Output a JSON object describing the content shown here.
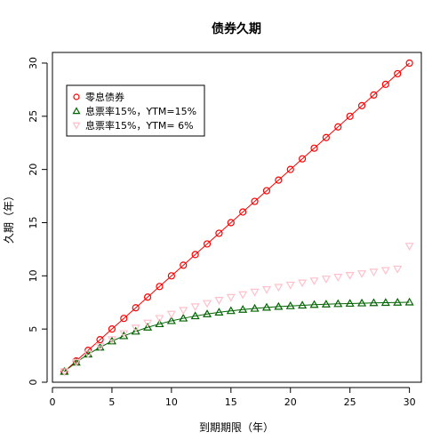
{
  "chart_data": {
    "type": "line",
    "title": "债券久期",
    "xlabel": "到期期限（年）",
    "ylabel": "久期（年）",
    "xlim": [
      0,
      31
    ],
    "ylim": [
      0,
      31
    ],
    "x_ticks": [
      0,
      5,
      10,
      15,
      20,
      25,
      30
    ],
    "y_ticks": [
      0,
      5,
      10,
      15,
      20,
      25,
      30
    ],
    "grid": false,
    "legend_position": "top-left",
    "x": [
      1,
      2,
      3,
      4,
      5,
      6,
      7,
      8,
      9,
      10,
      11,
      12,
      13,
      14,
      15,
      16,
      17,
      18,
      19,
      20,
      21,
      22,
      23,
      24,
      25,
      26,
      27,
      28,
      29,
      30
    ],
    "series": [
      {
        "name": "零息债券",
        "color": "#ff0000",
        "marker": "circle",
        "line": true,
        "values": [
          1,
          2,
          3,
          4,
          5,
          6,
          7,
          8,
          9,
          10,
          11,
          12,
          13,
          14,
          15,
          16,
          17,
          18,
          19,
          20,
          21,
          22,
          23,
          24,
          25,
          26,
          27,
          28,
          29,
          30
        ]
      },
      {
        "name": "息票率15%，YTM=15%",
        "color": "#006400",
        "marker": "triangle-up",
        "line": true,
        "values": [
          1.0,
          1.87,
          2.63,
          3.28,
          3.86,
          4.35,
          4.78,
          5.16,
          5.48,
          5.77,
          6.01,
          6.22,
          6.41,
          6.57,
          6.71,
          6.83,
          6.93,
          7.03,
          7.11,
          7.17,
          7.23,
          7.29,
          7.33,
          7.37,
          7.4,
          7.43,
          7.46,
          7.48,
          7.5,
          7.52
        ]
      },
      {
        "name": "息票率15%，YTM= 6%",
        "color": "#ffc0cb",
        "marker": "triangle-down",
        "line": false,
        "values": [
          1.0,
          1.88,
          2.67,
          3.38,
          4.02,
          4.59,
          5.11,
          5.58,
          6.01,
          6.41,
          6.77,
          7.11,
          7.42,
          7.72,
          7.99,
          8.25,
          8.49,
          8.72,
          8.94,
          9.15,
          9.35,
          9.54,
          9.72,
          9.89,
          10.06,
          10.22,
          10.37,
          10.52,
          10.66,
          12.8
        ]
      }
    ]
  }
}
